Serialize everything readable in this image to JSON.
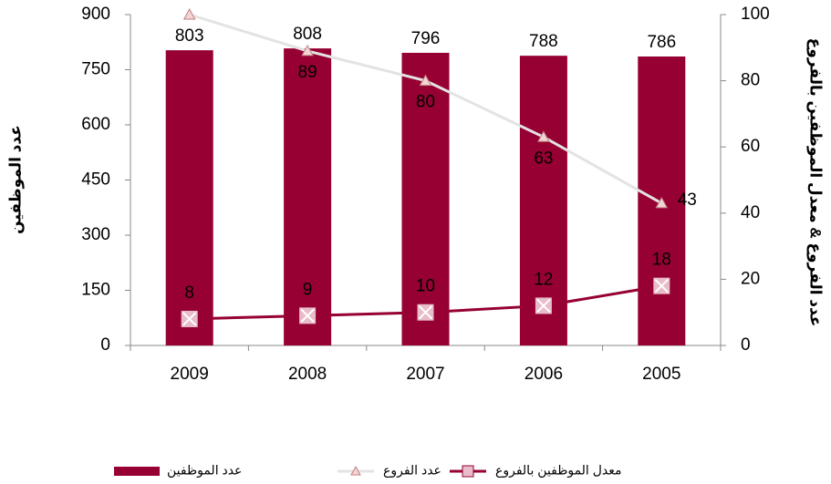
{
  "chart_data": {
    "type": "bar",
    "categories": [
      "2009",
      "2008",
      "2007",
      "2006",
      "2005"
    ],
    "ylabel": "عدد الموظفين",
    "y2label": "عدد الفروع & معدل الموظفين بالفروع",
    "ylim": [
      0,
      900
    ],
    "yticks": [
      0,
      150,
      300,
      450,
      600,
      750,
      900
    ],
    "y2lim": [
      0,
      100
    ],
    "y2ticks": [
      0,
      20,
      40,
      60,
      80,
      100
    ],
    "legend": "bottom",
    "series": [
      {
        "name": "عدد الموظفين",
        "type": "bar",
        "color": "#960033",
        "values": [
          803,
          808,
          796,
          788,
          786
        ]
      },
      {
        "name": "عدد الفروع",
        "type": "line",
        "marker": "triangle",
        "axis": "y2",
        "color": "#e3e3e3",
        "values": [
          100,
          89,
          80,
          63,
          43
        ],
        "value_labels": [
          null,
          "89",
          "80",
          "63",
          "43"
        ]
      },
      {
        "name": "معدل الموظفين بالفروع",
        "type": "line",
        "marker": "x",
        "axis": "y2",
        "color": "#960033",
        "values": [
          8,
          9,
          10,
          12,
          18
        ]
      }
    ]
  }
}
